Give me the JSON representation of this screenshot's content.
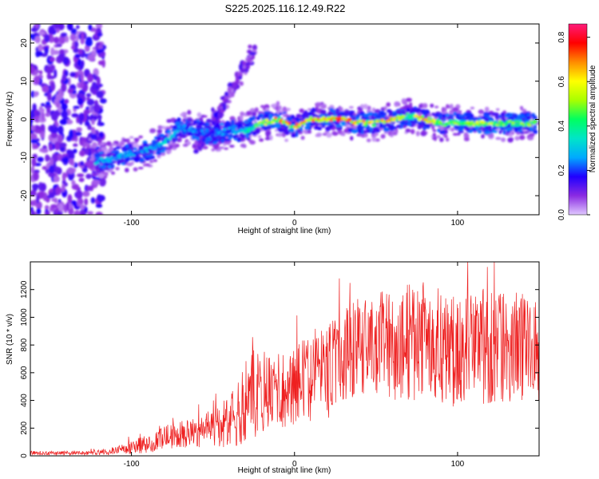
{
  "figure_title": "S225.2025.116.12.49.R22",
  "chart_data": [
    {
      "type": "heatmap",
      "title": "",
      "xlabel": "Height of straight line (km)",
      "ylabel": "Frequency (Hz)",
      "xlim": [
        -162,
        150
      ],
      "ylim": [
        -25,
        25
      ],
      "xticks": [
        -100,
        0,
        100
      ],
      "yticks": [
        -20,
        -10,
        0,
        10,
        20
      ],
      "colorbar": {
        "label": "Normalized spectral amplitude",
        "range": [
          0.0,
          0.86
        ],
        "ticks": [
          0.0,
          0.2,
          0.4,
          0.6,
          0.8
        ],
        "colormap": [
          "#e0c8ff",
          "#8a2be2",
          "#2000ff",
          "#00aaff",
          "#00e5c8",
          "#00ff60",
          "#a8ff00",
          "#ffff00",
          "#ff8c00",
          "#ff0000",
          "#ff1a7a"
        ]
      },
      "ridge": {
        "x": [
          -120,
          -110,
          -100,
          -90,
          -80,
          -70,
          -60,
          -50,
          -40,
          -30,
          -20,
          -10,
          0,
          10,
          20,
          30,
          40,
          50,
          60,
          70,
          80,
          90,
          100,
          110,
          120,
          130,
          140,
          148
        ],
        "y": [
          -11,
          -10,
          -9,
          -8,
          -6,
          -2,
          -3,
          -4,
          -3,
          -3,
          -1,
          0,
          -2,
          0,
          0,
          0,
          -1,
          -1,
          0,
          1,
          0,
          -1,
          -1,
          -1,
          -1,
          -1,
          -1,
          -1
        ],
        "amp": [
          0.35,
          0.3,
          0.3,
          0.3,
          0.35,
          0.35,
          0.25,
          0.25,
          0.3,
          0.4,
          0.55,
          0.75,
          0.75,
          0.8,
          0.8,
          0.82,
          0.7,
          0.72,
          0.75,
          0.55,
          0.8,
          0.5,
          0.55,
          0.6,
          0.6,
          0.55,
          0.6,
          0.55
        ]
      },
      "branch": {
        "x": [
          -60,
          -55,
          -50,
          -45,
          -40,
          -35,
          -30,
          -25
        ],
        "y": [
          -8,
          -4,
          0,
          3,
          6,
          10,
          14,
          18
        ]
      }
    },
    {
      "type": "line",
      "title": "",
      "xlabel": "Height of straight line (km)",
      "ylabel": "SNR (10 * v/v)",
      "xlim": [
        -162,
        150
      ],
      "ylim": [
        0,
        1400
      ],
      "xticks": [
        -100,
        0,
        100
      ],
      "yticks": [
        0,
        200,
        400,
        600,
        800,
        1000,
        1200
      ],
      "series": [
        {
          "color": "#ee2020",
          "x": [
            -162,
            -150,
            -140,
            -130,
            -120,
            -110,
            -100,
            -90,
            -80,
            -70,
            -60,
            -50,
            -40,
            -35,
            -30,
            -25,
            -20,
            -15,
            -10,
            -5,
            0,
            10,
            20,
            30,
            40,
            50,
            60,
            70,
            80,
            90,
            100,
            110,
            120,
            130,
            140,
            150
          ],
          "y": [
            20,
            20,
            20,
            20,
            25,
            40,
            60,
            90,
            130,
            150,
            170,
            200,
            230,
            300,
            400,
            450,
            480,
            470,
            460,
            500,
            520,
            560,
            600,
            720,
            780,
            800,
            800,
            820,
            830,
            800,
            760,
            820,
            780,
            760,
            780,
            760
          ],
          "spread": [
            15,
            15,
            15,
            15,
            20,
            30,
            50,
            70,
            90,
            100,
            110,
            140,
            200,
            250,
            300,
            330,
            300,
            300,
            280,
            300,
            300,
            320,
            340,
            350,
            360,
            380,
            400,
            420,
            430,
            420,
            420,
            430,
            420,
            420,
            400,
            380
          ]
        }
      ]
    }
  ]
}
